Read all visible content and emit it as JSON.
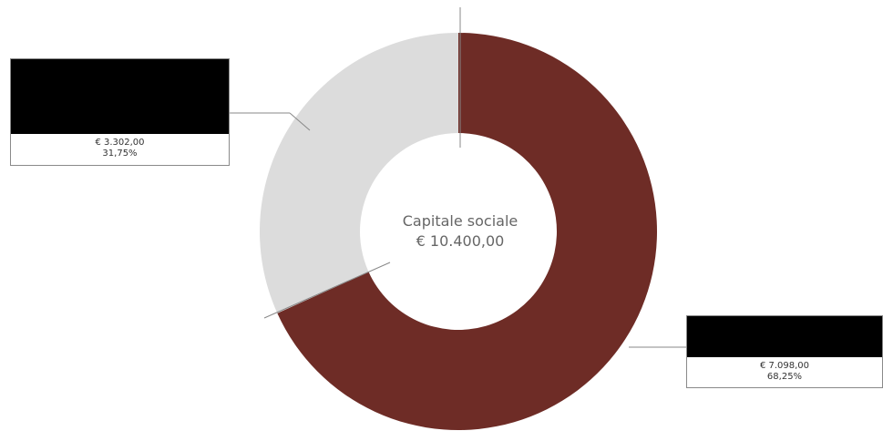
{
  "chart_data": {
    "type": "pie",
    "title": "",
    "center_label": {
      "line1": "Capitale sociale",
      "line2": "€ 10.400,00"
    },
    "slices": [
      {
        "value": 7098.0,
        "amount_label": "€ 7.098,00",
        "percent_label": "68,25%",
        "color": "#6e2c26"
      },
      {
        "value": 3302.0,
        "amount_label": "€ 3.302,00",
        "percent_label": "31,75%",
        "color": "#dcdcdc"
      }
    ],
    "total": 10400.0
  }
}
